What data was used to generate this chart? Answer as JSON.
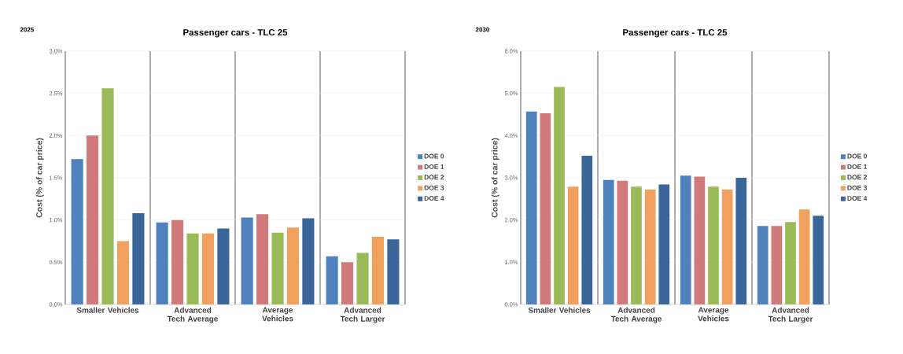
{
  "chart_data": [
    {
      "type": "bar",
      "subtitle": "2025",
      "title": "Passenger cars - TLC 25",
      "ylabel": "Cost (% of car price)",
      "categories": [
        "Smaller Vehicles",
        "Advanced Tech Average",
        "Average Vehicles",
        "Advanced Tech Larger"
      ],
      "series": [
        {
          "name": "DOE 0",
          "color": "#4f81bd",
          "values": [
            1.72,
            0.97,
            1.03,
            0.57
          ]
        },
        {
          "name": "DOE 1",
          "color": "#d07a7c",
          "values": [
            2.0,
            1.0,
            1.07,
            0.5
          ]
        },
        {
          "name": "DOE 2",
          "color": "#9bbb59",
          "values": [
            2.56,
            0.84,
            0.85,
            0.61
          ]
        },
        {
          "name": "DOE 3",
          "color": "#f2a05e",
          "values": [
            0.75,
            0.84,
            0.91,
            0.8
          ]
        },
        {
          "name": "DOE 4",
          "color": "#3b6699",
          "values": [
            1.08,
            0.9,
            1.02,
            0.77
          ]
        }
      ],
      "ylim": [
        0,
        3.0
      ],
      "yticks": [
        {
          "value": 0,
          "label": "0.0%"
        },
        {
          "value": 0.5,
          "label": "0.5%"
        },
        {
          "value": 1.0,
          "label": "1.0%"
        },
        {
          "value": 1.5,
          "label": "1.5%"
        },
        {
          "value": 2.0,
          "label": "2.0%"
        },
        {
          "value": 2.5,
          "label": "2.5%"
        },
        {
          "value": 3.0,
          "label": "3.0%"
        }
      ],
      "grid": "y",
      "legend": "right"
    },
    {
      "type": "bar",
      "subtitle": "2030",
      "title": "Passenger cars - TLC 25",
      "ylabel": "Cost (% of car price)",
      "categories": [
        "Smaller Vehicles",
        "Advanced Tech Average",
        "Average Vehicles",
        "Advanced Tech Larger"
      ],
      "series": [
        {
          "name": "DOE 0",
          "color": "#4f81bd",
          "values": [
            4.57,
            2.95,
            3.05,
            1.86
          ]
        },
        {
          "name": "DOE 1",
          "color": "#d07a7c",
          "values": [
            4.53,
            2.93,
            3.03,
            1.86
          ]
        },
        {
          "name": "DOE 2",
          "color": "#9bbb59",
          "values": [
            5.15,
            2.79,
            2.79,
            1.95
          ]
        },
        {
          "name": "DOE 3",
          "color": "#f2a05e",
          "values": [
            2.79,
            2.72,
            2.72,
            2.25
          ]
        },
        {
          "name": "DOE 4",
          "color": "#3b6699",
          "values": [
            3.52,
            2.84,
            3.0,
            2.1
          ]
        }
      ],
      "ylim": [
        0,
        6.0
      ],
      "yticks": [
        {
          "value": 0,
          "label": "0.0%"
        },
        {
          "value": 1.0,
          "label": "1.0%"
        },
        {
          "value": 2.0,
          "label": "2.0%"
        },
        {
          "value": 3.0,
          "label": "3.0%"
        },
        {
          "value": 4.0,
          "label": "4.0%"
        },
        {
          "value": 5.0,
          "label": "5.0%"
        },
        {
          "value": 6.0,
          "label": "6.0%"
        }
      ],
      "grid": "y",
      "legend": "right"
    }
  ]
}
